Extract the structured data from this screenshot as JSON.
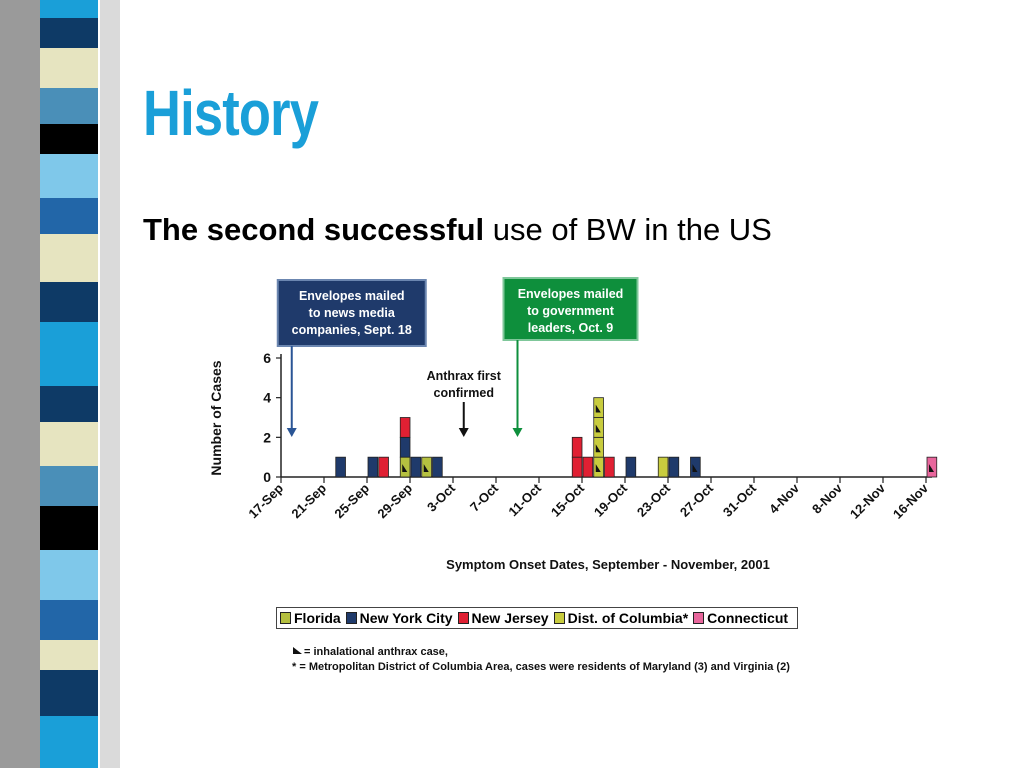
{
  "slide": {
    "title": "History",
    "subtitle_bold": "The second successful",
    "subtitle_rest": " use of BW in the US"
  },
  "colors": {
    "title": "#1a9fd8",
    "florida": "#b5c040",
    "new_york_city": "#1f3a6b",
    "new_jersey": "#e02033",
    "dc": "#c8cc3e",
    "connecticut": "#e8669c",
    "callout_blue": "#1f3a6b",
    "callout_green": "#0e8f3c"
  },
  "chart_data": {
    "type": "bar",
    "stacked": true,
    "ylabel": "Number of Cases",
    "xlabel": "Symptom Onset Dates, September - November, 2001",
    "ylim": [
      0,
      6
    ],
    "yticks": [
      0,
      2,
      4,
      6
    ],
    "xticks": [
      "17-Sep",
      "21-Sep",
      "25-Sep",
      "29-Sep",
      "3-Oct",
      "7-Oct",
      "11-Oct",
      "15-Oct",
      "19-Oct",
      "23-Oct",
      "27-Oct",
      "31-Oct",
      "4-Nov",
      "8-Nov",
      "12-Nov",
      "16-Nov"
    ],
    "series": [
      {
        "name": "Florida",
        "color": "#b5c040"
      },
      {
        "name": "New York City",
        "color": "#1f3a6b"
      },
      {
        "name": "New Jersey",
        "color": "#e02033"
      },
      {
        "name": "Dist. of Columbia*",
        "color": "#c8cc3e"
      },
      {
        "name": "Connecticut",
        "color": "#e8669c"
      }
    ],
    "cases": [
      {
        "date": "22-Sep",
        "series": "New York City",
        "count": 1,
        "inhalational": false
      },
      {
        "date": "25-Sep",
        "series": "New York City",
        "count": 1,
        "inhalational": false
      },
      {
        "date": "26-Sep",
        "series": "New Jersey",
        "count": 1,
        "inhalational": false
      },
      {
        "date": "28-Sep",
        "series": "Florida",
        "count": 1,
        "inhalational": true
      },
      {
        "date": "28-Sep",
        "series": "New York City",
        "count": 1,
        "inhalational": false
      },
      {
        "date": "28-Sep",
        "series": "New Jersey",
        "count": 1,
        "inhalational": false
      },
      {
        "date": "29-Sep",
        "series": "New York City",
        "count": 1,
        "inhalational": false
      },
      {
        "date": "30-Sep",
        "series": "Florida",
        "count": 1,
        "inhalational": true
      },
      {
        "date": "1-Oct",
        "series": "New York City",
        "count": 1,
        "inhalational": false
      },
      {
        "date": "14-Oct",
        "series": "New Jersey",
        "count": 2,
        "inhalational": false
      },
      {
        "date": "15-Oct",
        "series": "New Jersey",
        "count": 1,
        "inhalational": false
      },
      {
        "date": "16-Oct",
        "series": "Dist. of Columbia*",
        "count": 4,
        "inhalational": true
      },
      {
        "date": "17-Oct",
        "series": "New Jersey",
        "count": 1,
        "inhalational": false
      },
      {
        "date": "19-Oct",
        "series": "New York City",
        "count": 1,
        "inhalational": false
      },
      {
        "date": "22-Oct",
        "series": "Dist. of Columbia*",
        "count": 1,
        "inhalational": false
      },
      {
        "date": "23-Oct",
        "series": "New York City",
        "count": 1,
        "inhalational": false
      },
      {
        "date": "25-Oct",
        "series": "New York City",
        "count": 1,
        "inhalational": true
      },
      {
        "date": "16-Nov",
        "series": "Connecticut",
        "count": 1,
        "inhalational": true
      }
    ],
    "annotations": [
      {
        "text": [
          "Envelopes mailed",
          "to news media",
          "companies, Sept. 18"
        ],
        "date": "18-Sep",
        "style": "callout_blue"
      },
      {
        "text": [
          "Anthrax first",
          "confirmed"
        ],
        "date": "4-Oct",
        "style": "plain"
      },
      {
        "text": [
          "Envelopes mailed",
          "to government",
          "leaders, Oct. 9"
        ],
        "date": "9-Oct",
        "style": "callout_green"
      }
    ],
    "legend": [
      {
        "label": "Florida",
        "color": "#b5c040"
      },
      {
        "label": "New York City",
        "color": "#1f3a6b"
      },
      {
        "label": "New Jersey",
        "color": "#e02033"
      },
      {
        "label": "Dist. of Columbia*",
        "color": "#c8cc3e"
      },
      {
        "label": "Connecticut",
        "color": "#e8669c"
      }
    ],
    "footnotes": [
      "= inhalational anthrax case,",
      "* = Metropolitan District of Columbia Area, cases were residents of Maryland (3) and Virginia (2)"
    ]
  }
}
